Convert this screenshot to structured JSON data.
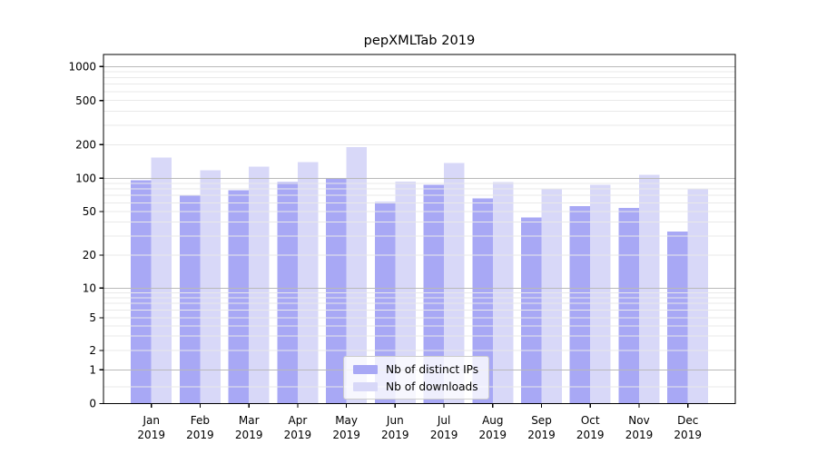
{
  "figure": {
    "background": "#ffffff"
  },
  "chart_data": {
    "type": "bar",
    "title": "pepXMLTab 2019",
    "months": [
      "Jan",
      "Feb",
      "Mar",
      "Apr",
      "May",
      "Jun",
      "Jul",
      "Aug",
      "Sep",
      "Oct",
      "Nov",
      "Dec"
    ],
    "year": "2019",
    "categories": [
      "Jan 2019",
      "Feb 2019",
      "Mar 2019",
      "Apr 2019",
      "May 2019",
      "Jun 2019",
      "Jul 2019",
      "Aug 2019",
      "Sep 2019",
      "Oct 2019",
      "Nov 2019",
      "Dec 2019"
    ],
    "series": [
      {
        "name": "Nb of distinct IPs",
        "color": "#a8a8f5",
        "values": [
          96,
          70,
          78,
          92,
          100,
          61,
          87,
          66,
          44,
          56,
          54,
          33
        ]
      },
      {
        "name": "Nb of downloads",
        "color": "#d8d8f8",
        "values": [
          153,
          118,
          127,
          140,
          190,
          93,
          137,
          92,
          81,
          87,
          107,
          81
        ]
      }
    ],
    "xlabel": "",
    "ylabel": "",
    "yscale": "log-like (1-2-5 ticks with 0 baseline)",
    "ylim": [
      0,
      1000
    ],
    "y_tick_labels": [
      "1000",
      "500",
      "200",
      "100",
      "50",
      "20",
      "10",
      "5",
      "2",
      "1",
      "0"
    ],
    "y_tick_values": [
      1000,
      500,
      200,
      100,
      50,
      20,
      10,
      5,
      2,
      1,
      0
    ],
    "grid": "on",
    "grid_major_color": "#b9b9b9",
    "grid_minor_color": "#e9e9e9",
    "legend": {
      "position": "lower center",
      "entries": [
        "Nb of distinct IPs",
        "Nb of downloads"
      ]
    }
  }
}
